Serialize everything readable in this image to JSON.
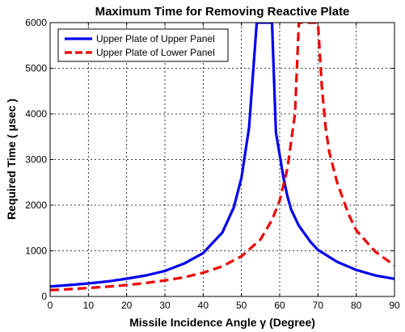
{
  "chart_data": {
    "type": "line",
    "title": "Maximum Time for Removing Reactive Plate",
    "xlabel": "Missile Incidence Angle  γ (Degree)",
    "ylabel": "Required Time ( μsec )",
    "xlim": [
      0,
      90
    ],
    "ylim": [
      0,
      6000
    ],
    "x_ticks": [
      0,
      10,
      20,
      30,
      40,
      50,
      60,
      70,
      80,
      90
    ],
    "y_ticks": [
      0,
      1000,
      2000,
      3000,
      4000,
      5000,
      6000
    ],
    "grid": true,
    "legend_position": "top-left",
    "series": [
      {
        "name": "Upper Plate of Upper Panel",
        "color": "#0000ee",
        "line_style": "solid",
        "x": [
          0,
          5,
          10,
          15,
          20,
          25,
          30,
          35,
          40,
          45,
          48,
          50,
          52,
          54,
          55,
          56,
          57,
          58,
          59,
          60,
          61,
          62,
          63,
          65,
          68,
          70,
          75,
          80,
          85,
          90
        ],
        "y": [
          220,
          250,
          285,
          330,
          390,
          460,
          560,
          720,
          950,
          1400,
          1950,
          2600,
          3700,
          6000,
          6000,
          6000,
          6000,
          6000,
          3600,
          3100,
          2600,
          2200,
          1900,
          1550,
          1200,
          1020,
          760,
          580,
          460,
          385
        ]
      },
      {
        "name": "Upper Plate of Lower Panel",
        "color": "#ee0000",
        "line_style": "dashed",
        "x": [
          0,
          5,
          10,
          15,
          20,
          25,
          30,
          35,
          40,
          45,
          50,
          55,
          58,
          60,
          62,
          64,
          65,
          70,
          71,
          72,
          73,
          75,
          78,
          80,
          85,
          90
        ],
        "y": [
          140,
          160,
          185,
          215,
          250,
          295,
          350,
          420,
          520,
          660,
          880,
          1250,
          1680,
          2100,
          2800,
          4000,
          6000,
          6000,
          4600,
          3700,
          3150,
          2500,
          1800,
          1450,
          980,
          680
        ]
      }
    ]
  }
}
